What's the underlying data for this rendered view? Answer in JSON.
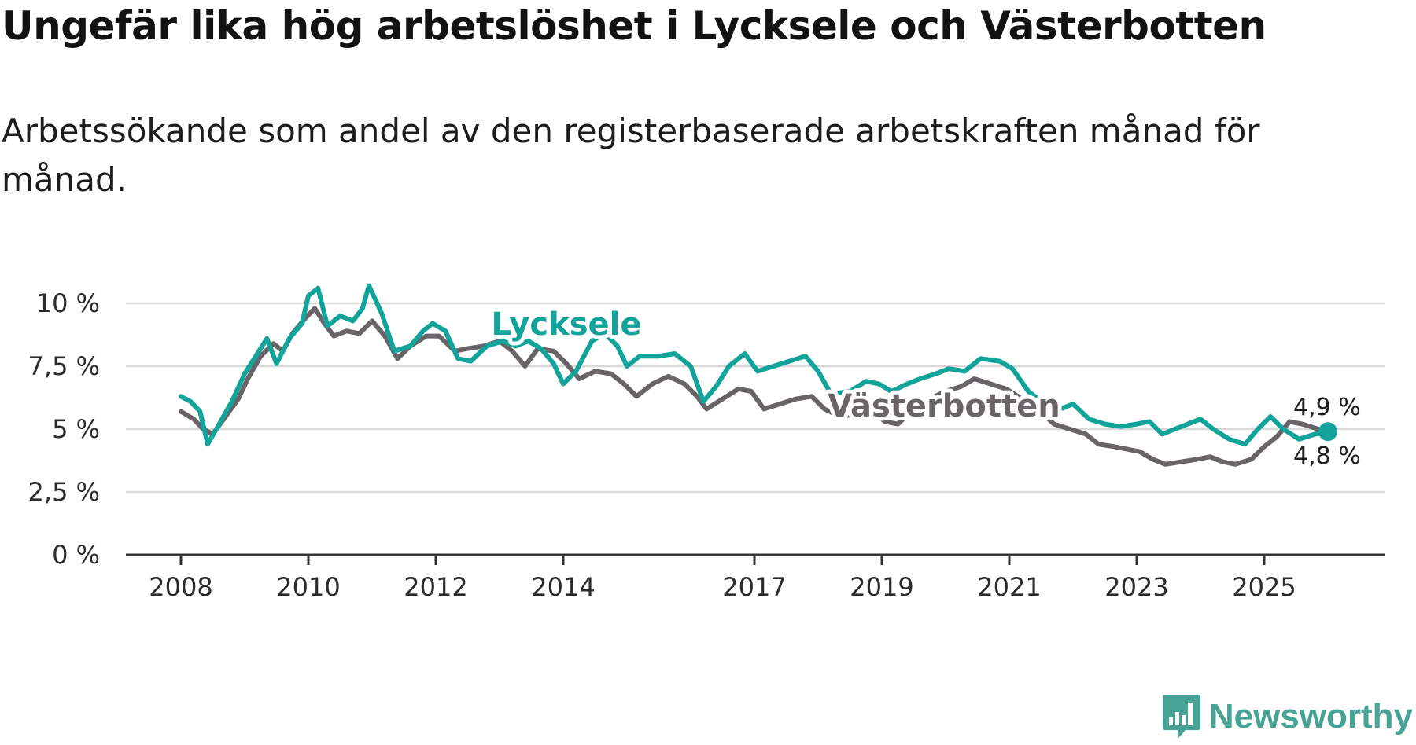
{
  "title": "Ungefär lika hög arbetslöshet i Lycksele och Västerbotten",
  "subtitle": "Arbetssökande som andel av den registerbaserade arbetskraften månad för månad.",
  "brand": {
    "name": "Newsworthy",
    "icon": "newsworthy-logo-icon",
    "color": "#47a396"
  },
  "chart_data": {
    "type": "line",
    "title": "Ungefär lika hög arbetslöshet i Lycksele och Västerbotten",
    "subtitle": "Arbetssökande som andel av den registerbaserade arbetskraften månad för månad.",
    "xlabel": "",
    "ylabel": "",
    "xlim": [
      2008.0,
      2026.7
    ],
    "ylim": [
      0,
      10
    ],
    "grid": true,
    "legend": "inline labels",
    "x_ticks": [
      {
        "value": 2008,
        "label": "2008"
      },
      {
        "value": 2010,
        "label": "2010"
      },
      {
        "value": 2012,
        "label": "2012"
      },
      {
        "value": 2014,
        "label": "2014"
      },
      {
        "value": 2017,
        "label": "2017"
      },
      {
        "value": 2019,
        "label": "2019"
      },
      {
        "value": 2021,
        "label": "2021"
      },
      {
        "value": 2023,
        "label": "2023"
      },
      {
        "value": 2025,
        "label": "2025"
      }
    ],
    "y_ticks": [
      {
        "value": 0,
        "label": "0 %"
      },
      {
        "value": 2.5,
        "label": "2,5 %"
      },
      {
        "value": 5,
        "label": "5 %"
      },
      {
        "value": 7.5,
        "label": "7,5 %"
      },
      {
        "value": 10,
        "label": "10 %"
      }
    ],
    "series": [
      {
        "name": "Lycksele",
        "color": "#12a39a",
        "end_label": "4,9 %",
        "points": [
          [
            2008.0,
            6.3
          ],
          [
            2008.15,
            6.1
          ],
          [
            2008.3,
            5.7
          ],
          [
            2008.42,
            4.4
          ],
          [
            2008.6,
            5.2
          ],
          [
            2008.8,
            6.1
          ],
          [
            2009.0,
            7.2
          ],
          [
            2009.2,
            8.0
          ],
          [
            2009.35,
            8.6
          ],
          [
            2009.5,
            7.6
          ],
          [
            2009.7,
            8.6
          ],
          [
            2009.9,
            9.2
          ],
          [
            2010.0,
            10.3
          ],
          [
            2010.15,
            10.6
          ],
          [
            2010.3,
            9.1
          ],
          [
            2010.5,
            9.5
          ],
          [
            2010.7,
            9.3
          ],
          [
            2010.85,
            9.8
          ],
          [
            2010.95,
            10.7
          ],
          [
            2011.15,
            9.6
          ],
          [
            2011.35,
            8.1
          ],
          [
            2011.6,
            8.3
          ],
          [
            2011.8,
            8.9
          ],
          [
            2011.95,
            9.2
          ],
          [
            2012.15,
            8.9
          ],
          [
            2012.35,
            7.8
          ],
          [
            2012.55,
            7.7
          ],
          [
            2012.8,
            8.3
          ],
          [
            2013.05,
            8.5
          ],
          [
            2013.25,
            8.3
          ],
          [
            2013.45,
            8.5
          ],
          [
            2013.65,
            8.2
          ],
          [
            2013.85,
            7.6
          ],
          [
            2014.0,
            6.8
          ],
          [
            2014.2,
            7.3
          ],
          [
            2014.45,
            8.5
          ],
          [
            2014.65,
            8.8
          ],
          [
            2014.85,
            8.3
          ],
          [
            2015.0,
            7.5
          ],
          [
            2015.2,
            7.9
          ],
          [
            2015.5,
            7.9
          ],
          [
            2015.75,
            8.0
          ],
          [
            2016.0,
            7.5
          ],
          [
            2016.2,
            6.1
          ],
          [
            2016.4,
            6.7
          ],
          [
            2016.6,
            7.5
          ],
          [
            2016.85,
            8.0
          ],
          [
            2017.05,
            7.3
          ],
          [
            2017.3,
            7.5
          ],
          [
            2017.55,
            7.7
          ],
          [
            2017.8,
            7.9
          ],
          [
            2018.0,
            7.3
          ],
          [
            2018.2,
            6.4
          ],
          [
            2018.5,
            6.5
          ],
          [
            2018.75,
            6.9
          ],
          [
            2018.95,
            6.8
          ],
          [
            2019.15,
            6.5
          ],
          [
            2019.4,
            6.8
          ],
          [
            2019.6,
            7.0
          ],
          [
            2019.85,
            7.2
          ],
          [
            2020.05,
            7.4
          ],
          [
            2020.3,
            7.3
          ],
          [
            2020.55,
            7.8
          ],
          [
            2020.85,
            7.7
          ],
          [
            2021.05,
            7.4
          ],
          [
            2021.3,
            6.5
          ],
          [
            2021.55,
            6.0
          ],
          [
            2021.8,
            5.8
          ],
          [
            2022.0,
            6.0
          ],
          [
            2022.25,
            5.4
          ],
          [
            2022.5,
            5.2
          ],
          [
            2022.75,
            5.1
          ],
          [
            2023.0,
            5.2
          ],
          [
            2023.2,
            5.3
          ],
          [
            2023.4,
            4.8
          ],
          [
            2023.6,
            5.0
          ],
          [
            2023.8,
            5.2
          ],
          [
            2024.0,
            5.4
          ],
          [
            2024.2,
            5.0
          ],
          [
            2024.45,
            4.6
          ],
          [
            2024.7,
            4.4
          ],
          [
            2024.9,
            5.0
          ],
          [
            2025.1,
            5.5
          ],
          [
            2025.3,
            5.0
          ],
          [
            2025.55,
            4.6
          ],
          [
            2025.8,
            4.8
          ],
          [
            2026.0,
            4.9
          ]
        ]
      },
      {
        "name": "Västerbotten",
        "color": "#686468",
        "end_label": "4,8 %",
        "points": [
          [
            2008.0,
            5.7
          ],
          [
            2008.2,
            5.4
          ],
          [
            2008.35,
            5.0
          ],
          [
            2008.5,
            4.8
          ],
          [
            2008.7,
            5.5
          ],
          [
            2008.9,
            6.2
          ],
          [
            2009.05,
            7.0
          ],
          [
            2009.25,
            7.9
          ],
          [
            2009.45,
            8.4
          ],
          [
            2009.6,
            8.1
          ],
          [
            2009.75,
            8.8
          ],
          [
            2009.95,
            9.4
          ],
          [
            2010.1,
            9.8
          ],
          [
            2010.25,
            9.2
          ],
          [
            2010.4,
            8.7
          ],
          [
            2010.6,
            8.9
          ],
          [
            2010.8,
            8.8
          ],
          [
            2011.0,
            9.3
          ],
          [
            2011.2,
            8.7
          ],
          [
            2011.4,
            7.8
          ],
          [
            2011.6,
            8.3
          ],
          [
            2011.85,
            8.7
          ],
          [
            2012.05,
            8.7
          ],
          [
            2012.3,
            8.1
          ],
          [
            2012.5,
            8.2
          ],
          [
            2012.75,
            8.3
          ],
          [
            2013.0,
            8.5
          ],
          [
            2013.2,
            8.1
          ],
          [
            2013.4,
            7.5
          ],
          [
            2013.6,
            8.2
          ],
          [
            2013.85,
            8.1
          ],
          [
            2014.05,
            7.6
          ],
          [
            2014.25,
            7.0
          ],
          [
            2014.5,
            7.3
          ],
          [
            2014.75,
            7.2
          ],
          [
            2014.95,
            6.8
          ],
          [
            2015.15,
            6.3
          ],
          [
            2015.4,
            6.8
          ],
          [
            2015.65,
            7.1
          ],
          [
            2015.9,
            6.8
          ],
          [
            2016.1,
            6.3
          ],
          [
            2016.25,
            5.8
          ],
          [
            2016.5,
            6.2
          ],
          [
            2016.75,
            6.6
          ],
          [
            2016.95,
            6.5
          ],
          [
            2017.15,
            5.8
          ],
          [
            2017.4,
            6.0
          ],
          [
            2017.65,
            6.2
          ],
          [
            2017.9,
            6.3
          ],
          [
            2018.1,
            5.8
          ],
          [
            2018.35,
            5.5
          ],
          [
            2018.6,
            5.6
          ],
          [
            2018.85,
            5.7
          ],
          [
            2019.05,
            5.3
          ],
          [
            2019.25,
            5.2
          ],
          [
            2019.5,
            5.8
          ],
          [
            2019.75,
            6.2
          ],
          [
            2020.0,
            6.5
          ],
          [
            2020.25,
            6.7
          ],
          [
            2020.45,
            7.0
          ],
          [
            2020.7,
            6.8
          ],
          [
            2020.95,
            6.6
          ],
          [
            2021.2,
            6.2
          ],
          [
            2021.45,
            5.8
          ],
          [
            2021.7,
            5.2
          ],
          [
            2021.95,
            5.0
          ],
          [
            2022.2,
            4.8
          ],
          [
            2022.4,
            4.4
          ],
          [
            2022.65,
            4.3
          ],
          [
            2022.85,
            4.2
          ],
          [
            2023.05,
            4.1
          ],
          [
            2023.25,
            3.8
          ],
          [
            2023.45,
            3.6
          ],
          [
            2023.7,
            3.7
          ],
          [
            2023.95,
            3.8
          ],
          [
            2024.15,
            3.9
          ],
          [
            2024.35,
            3.7
          ],
          [
            2024.55,
            3.6
          ],
          [
            2024.8,
            3.8
          ],
          [
            2025.0,
            4.3
          ],
          [
            2025.2,
            4.7
          ],
          [
            2025.4,
            5.3
          ],
          [
            2025.6,
            5.2
          ],
          [
            2025.85,
            5.0
          ],
          [
            2026.0,
            4.8
          ]
        ]
      }
    ]
  }
}
